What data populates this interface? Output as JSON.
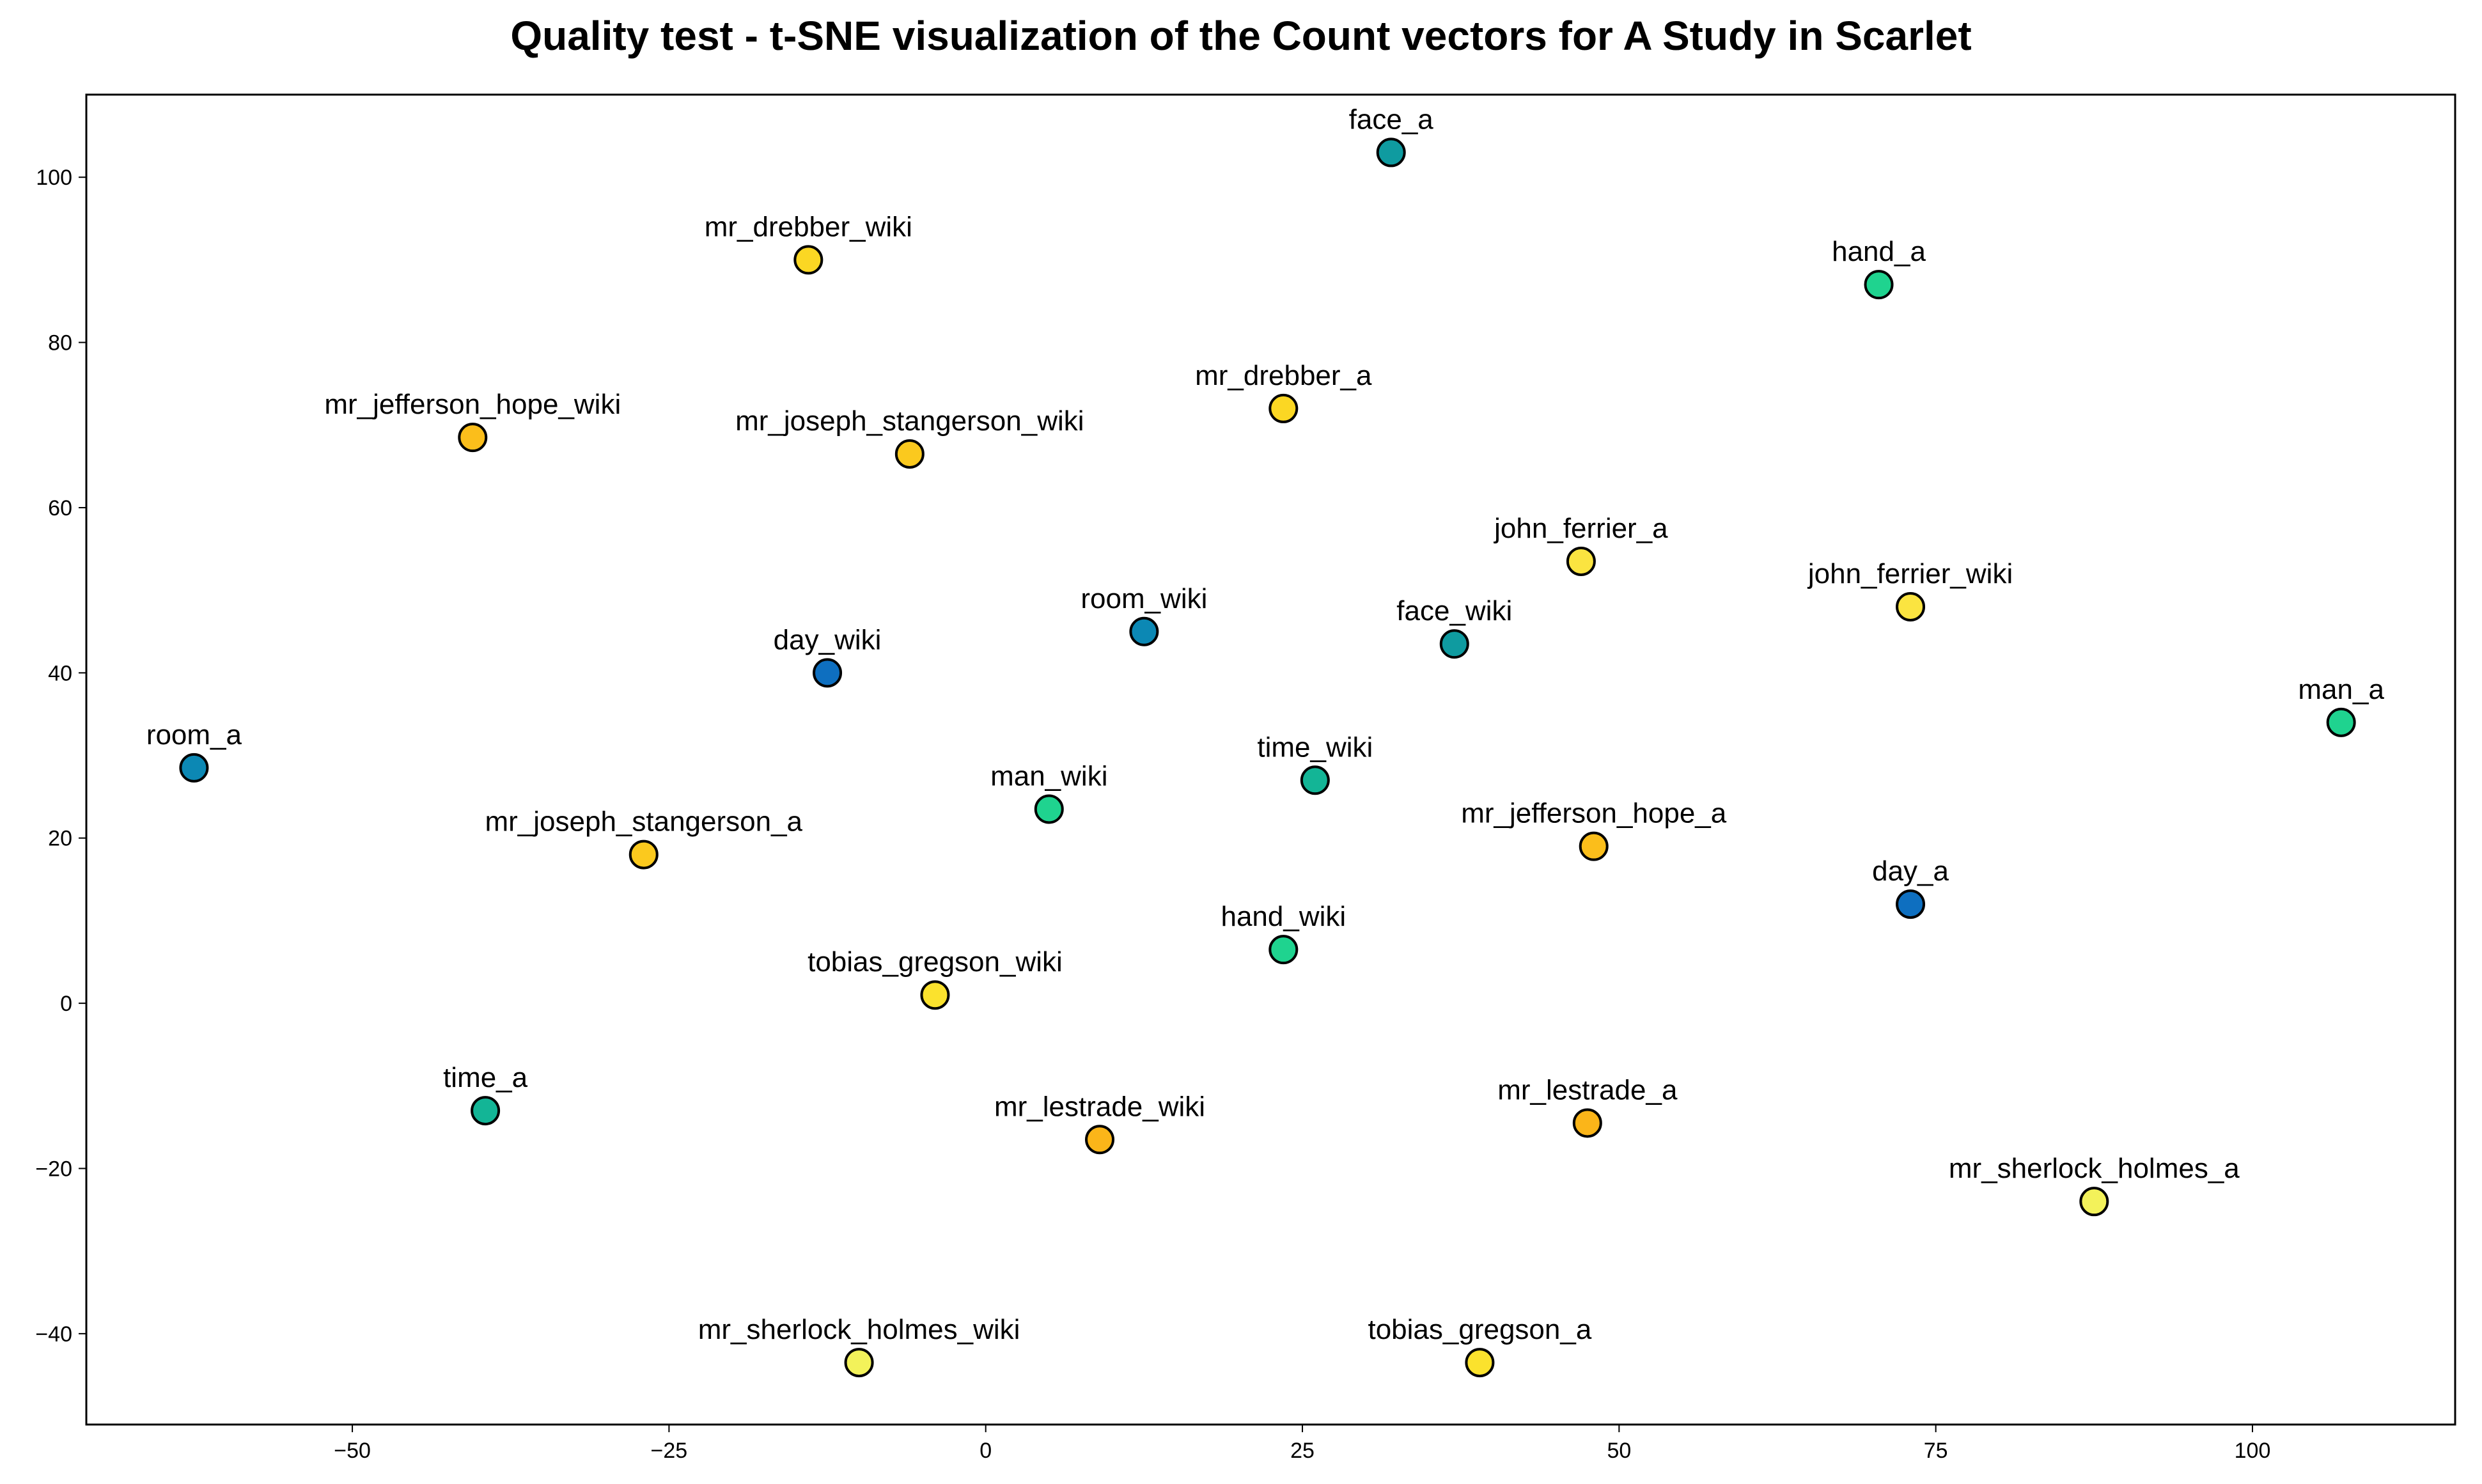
{
  "chart_data": {
    "type": "scatter",
    "title": "Quality test - t-SNE visualization of the Count vectors for A Study in Scarlet",
    "xlabel": "",
    "ylabel": "",
    "xlim": [
      -71,
      116
    ],
    "ylim": [
      -51,
      110
    ],
    "xticks": [
      -50,
      -25,
      0,
      25,
      50,
      75,
      100
    ],
    "yticks": [
      -40,
      -20,
      0,
      20,
      40,
      60,
      80,
      100
    ],
    "xtick_labels": [
      "−50",
      "−25",
      "0",
      "25",
      "50",
      "75",
      "100"
    ],
    "ytick_labels": [
      "−40",
      "−20",
      "0",
      "20",
      "40",
      "60",
      "80",
      "100"
    ],
    "grid": false,
    "points": [
      {
        "label": "face_a",
        "x": 32.0,
        "y": 103.0,
        "color": "#0f9ba0"
      },
      {
        "label": "mr_drebber_wiki",
        "x": -14.0,
        "y": 90.0,
        "color": "#fbd723"
      },
      {
        "label": "hand_a",
        "x": 70.5,
        "y": 87.0,
        "color": "#1fd38f"
      },
      {
        "label": "mr_jefferson_hope_wiki",
        "x": -40.5,
        "y": 68.5,
        "color": "#fbbe1b"
      },
      {
        "label": "mr_drebber_a",
        "x": 23.5,
        "y": 72.0,
        "color": "#fbd723"
      },
      {
        "label": "mr_joseph_stangerson_wiki",
        "x": -6.0,
        "y": 66.5,
        "color": "#fbc91e"
      },
      {
        "label": "john_ferrier_a",
        "x": 47.0,
        "y": 53.5,
        "color": "#fbe440"
      },
      {
        "label": "john_ferrier_wiki",
        "x": 73.0,
        "y": 48.0,
        "color": "#fbe440"
      },
      {
        "label": "room_wiki",
        "x": 12.5,
        "y": 45.0,
        "color": "#0c88b4"
      },
      {
        "label": "face_wiki",
        "x": 37.0,
        "y": 43.5,
        "color": "#0f9ba0"
      },
      {
        "label": "day_wiki",
        "x": -12.5,
        "y": 40.0,
        "color": "#0e6fc0"
      },
      {
        "label": "man_a",
        "x": 107.0,
        "y": 34.0,
        "color": "#1fd38f"
      },
      {
        "label": "room_a",
        "x": -62.5,
        "y": 28.5,
        "color": "#0c88b4"
      },
      {
        "label": "time_wiki",
        "x": 26.0,
        "y": 27.0,
        "color": "#13b596"
      },
      {
        "label": "man_wiki",
        "x": 5.0,
        "y": 23.5,
        "color": "#1fd38f"
      },
      {
        "label": "mr_jefferson_hope_a",
        "x": 48.0,
        "y": 19.0,
        "color": "#fbbe1b"
      },
      {
        "label": "mr_joseph_stangerson_a",
        "x": -27.0,
        "y": 18.0,
        "color": "#fbc91e"
      },
      {
        "label": "day_a",
        "x": 73.0,
        "y": 12.0,
        "color": "#0e6fc0"
      },
      {
        "label": "hand_wiki",
        "x": 23.5,
        "y": 6.5,
        "color": "#1fd38f"
      },
      {
        "label": "tobias_gregson_wiki",
        "x": -4.0,
        "y": 1.0,
        "color": "#fbe22d"
      },
      {
        "label": "time_a",
        "x": -39.5,
        "y": -13.0,
        "color": "#13b596"
      },
      {
        "label": "mr_lestrade_wiki",
        "x": 9.0,
        "y": -16.5,
        "color": "#fbb519"
      },
      {
        "label": "mr_lestrade_a",
        "x": 47.5,
        "y": -14.5,
        "color": "#fbb519"
      },
      {
        "label": "mr_sherlock_holmes_a",
        "x": 87.5,
        "y": -24.0,
        "color": "#f3f25a"
      },
      {
        "label": "mr_sherlock_holmes_wiki",
        "x": -10.0,
        "y": -43.5,
        "color": "#f3f25a"
      },
      {
        "label": "tobias_gregson_a",
        "x": 39.0,
        "y": -43.5,
        "color": "#fbe22d"
      }
    ]
  }
}
